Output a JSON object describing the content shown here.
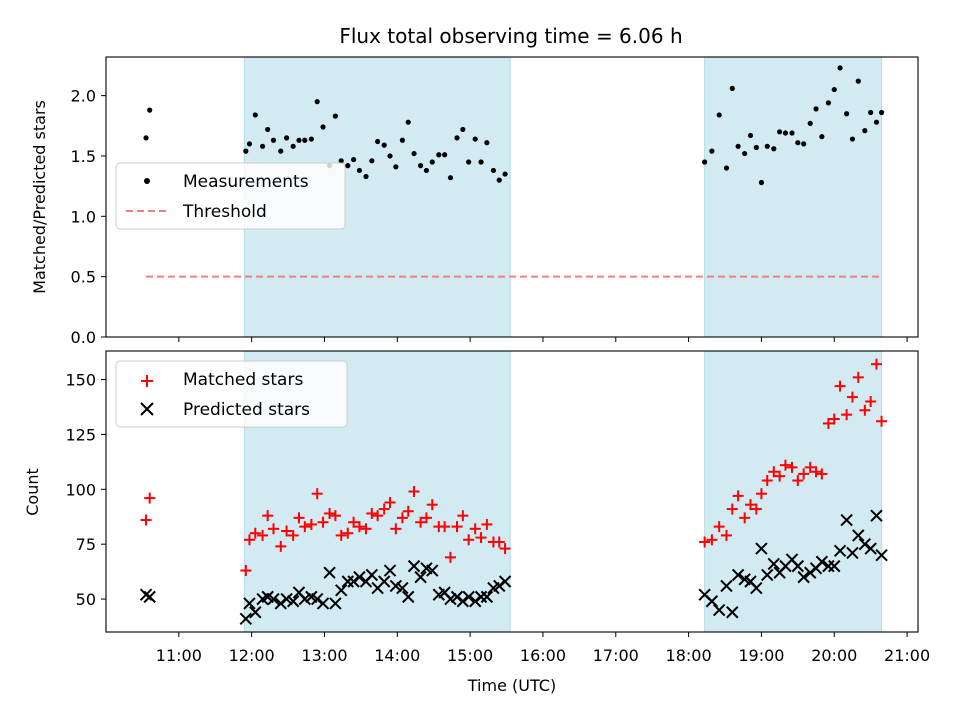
{
  "chart_data": [
    {
      "type": "scatter",
      "title": "Flux total observing time = 6.06 h",
      "ylabel": "Matched/Predicted stars",
      "xlabel": "",
      "xlim": [
        10.0,
        21.15
      ],
      "ylim": [
        0.0,
        2.32
      ],
      "yticks": [
        "0.0",
        "0.5",
        "1.0",
        "1.5",
        "2.0"
      ],
      "ytick_values": [
        0.0,
        0.5,
        1.0,
        1.5,
        2.0
      ],
      "shaded_spans": [
        [
          11.9,
          15.55
        ],
        [
          18.22,
          20.65
        ]
      ],
      "shade_color": "#add8e6",
      "legend": {
        "placement": "center-left",
        "entries": [
          "Measurements",
          "Threshold"
        ]
      },
      "threshold": {
        "name": "Threshold",
        "x": [
          10.55,
          20.65
        ],
        "y": 0.5,
        "color": "#f08080",
        "style": "dashed"
      },
      "series": [
        {
          "name": "Measurements",
          "color": "#000000",
          "marker": "dot",
          "x": [
            10.55,
            10.6,
            11.92,
            11.97,
            12.05,
            12.15,
            12.22,
            12.3,
            12.4,
            12.48,
            12.57,
            12.65,
            12.73,
            12.82,
            12.9,
            12.98,
            13.07,
            13.15,
            13.23,
            13.32,
            13.4,
            13.48,
            13.57,
            13.65,
            13.73,
            13.82,
            13.9,
            13.98,
            14.07,
            14.15,
            14.23,
            14.32,
            14.4,
            14.48,
            14.57,
            14.65,
            14.73,
            14.82,
            14.9,
            14.98,
            15.07,
            15.15,
            15.23,
            15.32,
            15.4,
            15.48,
            18.22,
            18.32,
            18.42,
            18.52,
            18.6,
            18.68,
            18.77,
            18.85,
            18.93,
            19.0,
            19.08,
            19.17,
            19.25,
            19.33,
            19.42,
            19.5,
            19.58,
            19.67,
            19.75,
            19.83,
            19.92,
            20.0,
            20.08,
            20.17,
            20.25,
            20.33,
            20.42,
            20.5,
            20.58,
            20.65
          ],
          "y": [
            1.65,
            1.88,
            1.54,
            1.6,
            1.84,
            1.58,
            1.72,
            1.63,
            1.54,
            1.65,
            1.58,
            1.63,
            1.63,
            1.64,
            1.95,
            1.74,
            1.42,
            1.83,
            1.46,
            1.42,
            1.47,
            1.38,
            1.33,
            1.46,
            1.62,
            1.59,
            1.5,
            1.41,
            1.63,
            1.78,
            1.52,
            1.42,
            1.38,
            1.45,
            1.51,
            1.51,
            1.32,
            1.65,
            1.72,
            1.45,
            1.64,
            1.45,
            1.61,
            1.38,
            1.3,
            1.35,
            1.45,
            1.54,
            1.84,
            1.4,
            2.06,
            1.58,
            1.52,
            1.67,
            1.57,
            1.28,
            1.58,
            1.56,
            1.7,
            1.69,
            1.69,
            1.61,
            1.6,
            1.77,
            1.89,
            1.66,
            1.94,
            2.05,
            2.23,
            1.85,
            1.64,
            2.12,
            1.71,
            1.86,
            1.78,
            1.86
          ]
        }
      ]
    },
    {
      "type": "scatter",
      "title": "",
      "ylabel": "Count",
      "xlabel": "Time (UTC)",
      "xlim": [
        10.0,
        21.15
      ],
      "ylim": [
        35,
        163
      ],
      "yticks": [
        "50",
        "75",
        "100",
        "125",
        "150"
      ],
      "ytick_values": [
        50,
        75,
        100,
        125,
        150
      ],
      "xticks": [
        "11:00",
        "12:00",
        "13:00",
        "14:00",
        "15:00",
        "16:00",
        "17:00",
        "18:00",
        "19:00",
        "20:00",
        "21:00"
      ],
      "xtick_values": [
        11,
        12,
        13,
        14,
        15,
        16,
        17,
        18,
        19,
        20,
        21
      ],
      "shaded_spans": [
        [
          11.9,
          15.55
        ],
        [
          18.22,
          20.65
        ]
      ],
      "shade_color": "#add8e6",
      "legend": {
        "placement": "top-left",
        "entries": [
          "Matched stars",
          "Predicted stars"
        ]
      },
      "series": [
        {
          "name": "Matched stars",
          "color": "#ff0000",
          "marker": "plus",
          "x": [
            10.55,
            10.6,
            11.92,
            11.97,
            12.05,
            12.15,
            12.22,
            12.3,
            12.4,
            12.48,
            12.57,
            12.65,
            12.73,
            12.82,
            12.9,
            12.98,
            13.07,
            13.15,
            13.23,
            13.32,
            13.4,
            13.48,
            13.57,
            13.65,
            13.73,
            13.82,
            13.9,
            13.98,
            14.07,
            14.15,
            14.23,
            14.32,
            14.4,
            14.48,
            14.57,
            14.65,
            14.73,
            14.82,
            14.9,
            14.98,
            15.07,
            15.15,
            15.23,
            15.32,
            15.4,
            15.48,
            18.22,
            18.32,
            18.42,
            18.52,
            18.6,
            18.68,
            18.77,
            18.85,
            18.93,
            19.0,
            19.08,
            19.17,
            19.25,
            19.33,
            19.42,
            19.5,
            19.58,
            19.67,
            19.75,
            19.83,
            19.92,
            20.0,
            20.08,
            20.17,
            20.25,
            20.33,
            20.42,
            20.5,
            20.58,
            20.65
          ],
          "y": [
            86,
            96,
            63,
            77,
            80,
            79,
            88,
            82,
            74,
            81,
            79,
            87,
            83,
            84,
            98,
            85,
            89,
            88,
            79,
            80,
            85,
            83,
            82,
            89,
            88,
            91,
            94,
            82,
            87,
            90,
            99,
            85,
            87,
            93,
            83,
            83,
            69,
            83,
            88,
            77,
            82,
            78,
            84,
            76,
            76,
            73,
            76,
            77,
            83,
            79,
            91,
            97,
            87,
            93,
            91,
            98,
            104,
            108,
            106,
            111,
            110,
            104,
            107,
            110,
            108,
            107,
            130,
            132,
            147,
            134,
            142,
            151,
            136,
            140,
            157,
            131
          ]
        },
        {
          "name": "Predicted stars",
          "color": "#000000",
          "marker": "x",
          "x": [
            10.55,
            10.6,
            11.92,
            11.97,
            12.05,
            12.15,
            12.22,
            12.3,
            12.4,
            12.48,
            12.57,
            12.65,
            12.73,
            12.82,
            12.9,
            12.98,
            13.07,
            13.15,
            13.23,
            13.32,
            13.4,
            13.48,
            13.57,
            13.65,
            13.73,
            13.82,
            13.9,
            13.98,
            14.07,
            14.15,
            14.23,
            14.32,
            14.4,
            14.48,
            14.57,
            14.65,
            14.73,
            14.82,
            14.9,
            14.98,
            15.07,
            15.15,
            15.23,
            15.32,
            15.4,
            15.48,
            18.22,
            18.32,
            18.42,
            18.52,
            18.6,
            18.68,
            18.77,
            18.85,
            18.93,
            19.0,
            19.08,
            19.17,
            19.25,
            19.33,
            19.42,
            19.5,
            19.58,
            19.67,
            19.75,
            19.83,
            19.92,
            20.0,
            20.08,
            20.17,
            20.25,
            20.33,
            20.42,
            20.5,
            20.58,
            20.65
          ],
          "y": [
            52,
            51,
            41,
            48,
            44,
            50,
            51,
            50,
            48,
            50,
            49,
            53,
            50,
            51,
            50,
            48,
            62,
            48,
            54,
            58,
            58,
            60,
            58,
            61,
            55,
            58,
            63,
            56,
            55,
            51,
            65,
            60,
            64,
            63,
            52,
            53,
            50,
            51,
            49,
            51,
            49,
            51,
            51,
            55,
            56,
            58,
            52,
            49,
            45,
            56,
            44,
            61,
            59,
            58,
            55,
            73,
            61,
            66,
            62,
            65,
            68,
            65,
            60,
            62,
            64,
            67,
            65,
            65,
            72,
            86,
            71,
            79,
            75,
            73,
            88,
            70
          ]
        }
      ]
    }
  ]
}
